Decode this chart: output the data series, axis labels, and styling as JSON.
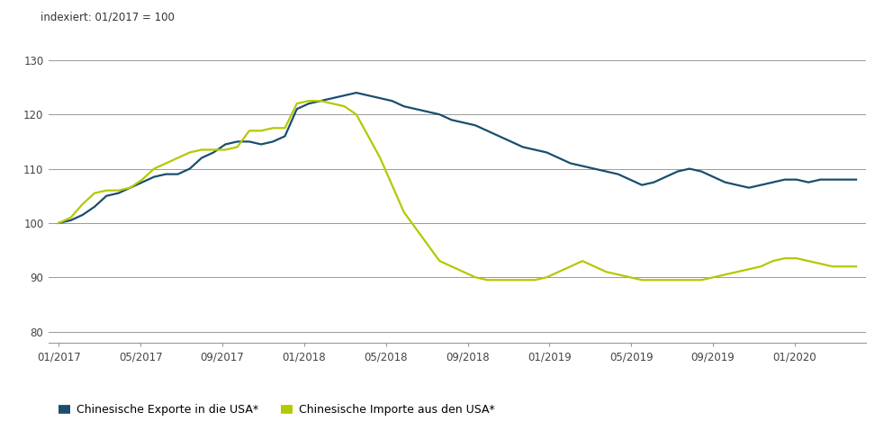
{
  "title_annotation": "indexiert: 01/2017 = 100",
  "ylim": [
    78,
    133
  ],
  "yticks": [
    80,
    90,
    100,
    110,
    120,
    130
  ],
  "background_color": "#ffffff",
  "grid_color": "#999999",
  "exports_color": "#1a4d6e",
  "imports_color": "#b5c800",
  "line_width": 1.6,
  "legend_exports": "Chinesische Exporte in die USA*",
  "legend_imports": "Chinesische Importe aus den USA*",
  "xtick_labels": [
    "01/2017",
    "05/2017",
    "09/2017",
    "01/2018",
    "05/2018",
    "09/2018",
    "01/2019",
    "05/2019",
    "09/2019",
    "01/2020"
  ],
  "xtick_positions": [
    0,
    4,
    8,
    12,
    16,
    20,
    24,
    28,
    32,
    36
  ],
  "exports_y": [
    100,
    100.5,
    101.5,
    103,
    105,
    105.5,
    106.5,
    107.5,
    108.5,
    109,
    109,
    110,
    112,
    113,
    114.5,
    115,
    115,
    114.5,
    115,
    116,
    121,
    122,
    122.5,
    123,
    123.5,
    124,
    123.5,
    123,
    122.5,
    121.5,
    121,
    120.5,
    120,
    119,
    118.5,
    118,
    117,
    116,
    115,
    114,
    113.5,
    113,
    112,
    111,
    110.5,
    110,
    109.5,
    109,
    108,
    107,
    107.5,
    108.5,
    109.5,
    110,
    109.5,
    108.5,
    107.5,
    107,
    106.5,
    107,
    107.5,
    108,
    108,
    107.5,
    108,
    108,
    108,
    108
  ],
  "imports_y": [
    100,
    101,
    103.5,
    105.5,
    106,
    106,
    106.5,
    108,
    110,
    111,
    112,
    113,
    113.5,
    113.5,
    113.5,
    114,
    117,
    117,
    117.5,
    117.5,
    122,
    122.5,
    122.5,
    122,
    121.5,
    120,
    116,
    112,
    107,
    102,
    99,
    96,
    93,
    92,
    91,
    90,
    89.5,
    89.5,
    89.5,
    89.5,
    89.5,
    90,
    91,
    92,
    93,
    92,
    91,
    90.5,
    90,
    89.5,
    89.5,
    89.5,
    89.5,
    89.5,
    89.5,
    90,
    90.5,
    91,
    91.5,
    92,
    93,
    93.5,
    93.5,
    93,
    92.5,
    92,
    92,
    92
  ]
}
